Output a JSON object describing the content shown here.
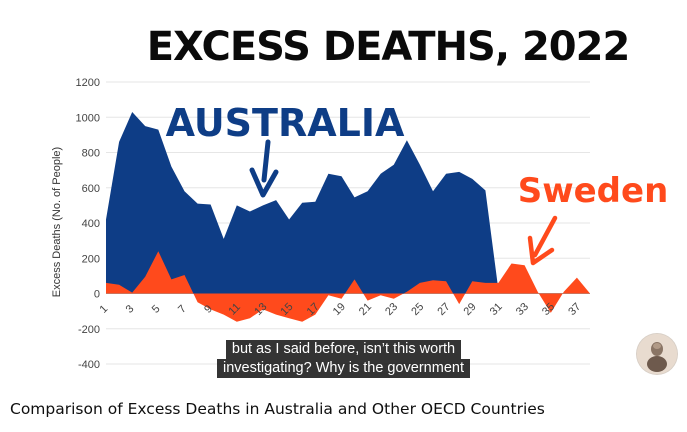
{
  "video": {
    "title": "Comparison of Excess Deaths in Australia and Other OECD Countries",
    "captions": [
      "but as I said before, isn’t this worth",
      "investigating? Why is the government"
    ]
  },
  "chart_data": {
    "type": "area",
    "title": "EXCESS DEATHS, 2022",
    "ylabel": "Excess Deaths (No. of People)",
    "xlabel": "",
    "ylim": [
      -400,
      1200
    ],
    "yticks": [
      1200,
      1000,
      800,
      600,
      400,
      200,
      0,
      -200,
      -400
    ],
    "xlim": [
      1,
      38
    ],
    "xticks": [
      1,
      3,
      5,
      7,
      9,
      11,
      13,
      15,
      17,
      19,
      21,
      23,
      25,
      27,
      29,
      31,
      33,
      35,
      37
    ],
    "grid": true,
    "annotations": [
      "AUSTRALIA",
      "Sweden"
    ],
    "series": [
      {
        "name": "Australia",
        "color": "#0e3d86",
        "x": [
          1,
          2,
          3,
          4,
          5,
          6,
          7,
          8,
          9,
          10,
          11,
          12,
          13,
          14,
          15,
          16,
          17,
          18,
          19,
          20,
          21,
          22,
          23,
          24,
          25,
          26,
          27,
          28,
          29,
          30,
          31
        ],
        "values": [
          420,
          860,
          1030,
          950,
          930,
          720,
          580,
          510,
          505,
          310,
          500,
          465,
          500,
          530,
          420,
          515,
          520,
          680,
          665,
          545,
          580,
          680,
          730,
          870,
          730,
          580,
          680,
          690,
          650,
          585,
          20
        ]
      },
      {
        "name": "Sweden",
        "color": "#ff4a1c",
        "x": [
          1,
          2,
          3,
          4,
          5,
          6,
          7,
          8,
          9,
          10,
          11,
          12,
          13,
          14,
          15,
          16,
          17,
          18,
          19,
          20,
          21,
          22,
          23,
          24,
          25,
          26,
          27,
          28,
          29,
          30,
          31,
          32,
          33,
          34,
          35,
          36,
          37,
          38
        ],
        "values": [
          60,
          50,
          5,
          95,
          240,
          80,
          105,
          -50,
          -90,
          -120,
          -160,
          -140,
          -90,
          -120,
          -140,
          -160,
          -120,
          -10,
          -30,
          80,
          -40,
          -10,
          -30,
          10,
          60,
          75,
          70,
          -60,
          70,
          60,
          60,
          170,
          160,
          10,
          -110,
          10,
          90,
          0
        ]
      }
    ]
  }
}
